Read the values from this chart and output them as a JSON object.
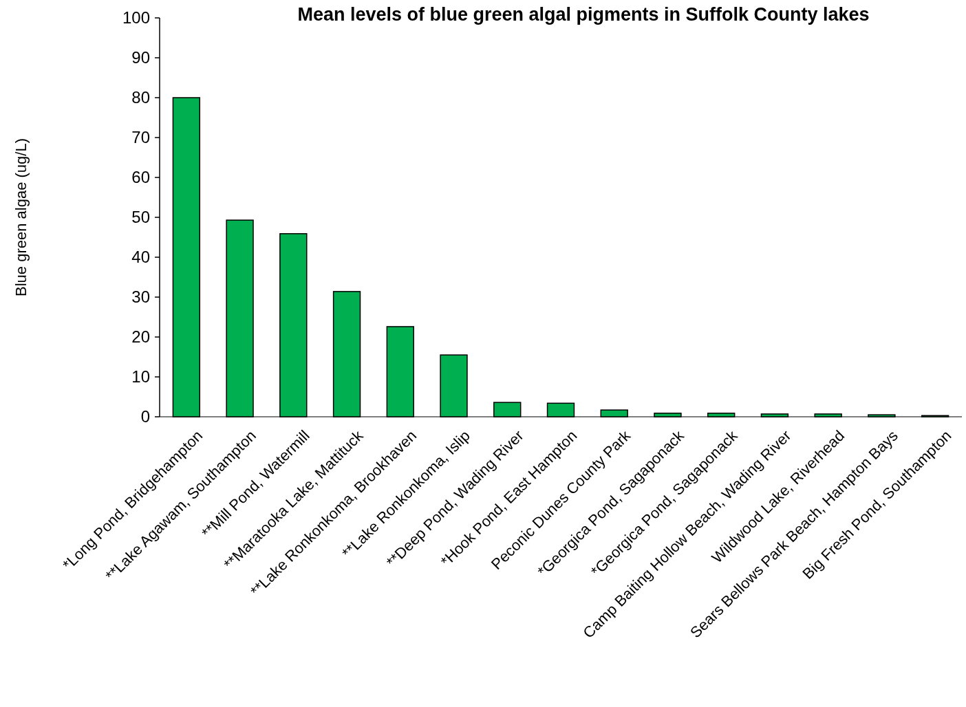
{
  "chart_data": {
    "type": "bar",
    "title": "Mean levels of blue green algal pigments in Suffolk County lakes",
    "ylabel": "Blue green algae (ug/L)",
    "categories": [
      "*Long Pond, Bridgehampton",
      "**Lake Agawam, Southampton",
      "**Mill Pond, Watermill",
      "**Maratooka Lake, Mattituck",
      "**Lake Ronkonkoma, Brookhaven",
      "**Lake Ronkonkoma, Islip",
      "**Deep Pond, Wading River",
      "*Hook Pond, East Hampton",
      "Peconic Dunes County Park",
      "*Georgica Pond, Sagaponack",
      "*Georgica Pond, Sagaponack",
      "Camp Baiting Hollow Beach, Wading River",
      "Wildwood Lake, Riverhead",
      "Sears Bellows Park Beach, Hampton Bays",
      "Big Fresh Pond, Southampton"
    ],
    "values": [
      80,
      49.3,
      45.9,
      31.4,
      22.6,
      15.5,
      3.6,
      3.4,
      1.7,
      0.9,
      0.9,
      0.7,
      0.7,
      0.5,
      0.3
    ],
    "color": "#00b050",
    "ylim": [
      0,
      100
    ],
    "yticks": [
      0,
      10,
      20,
      30,
      40,
      50,
      60,
      70,
      80,
      90,
      100
    ],
    "grid": false
  }
}
